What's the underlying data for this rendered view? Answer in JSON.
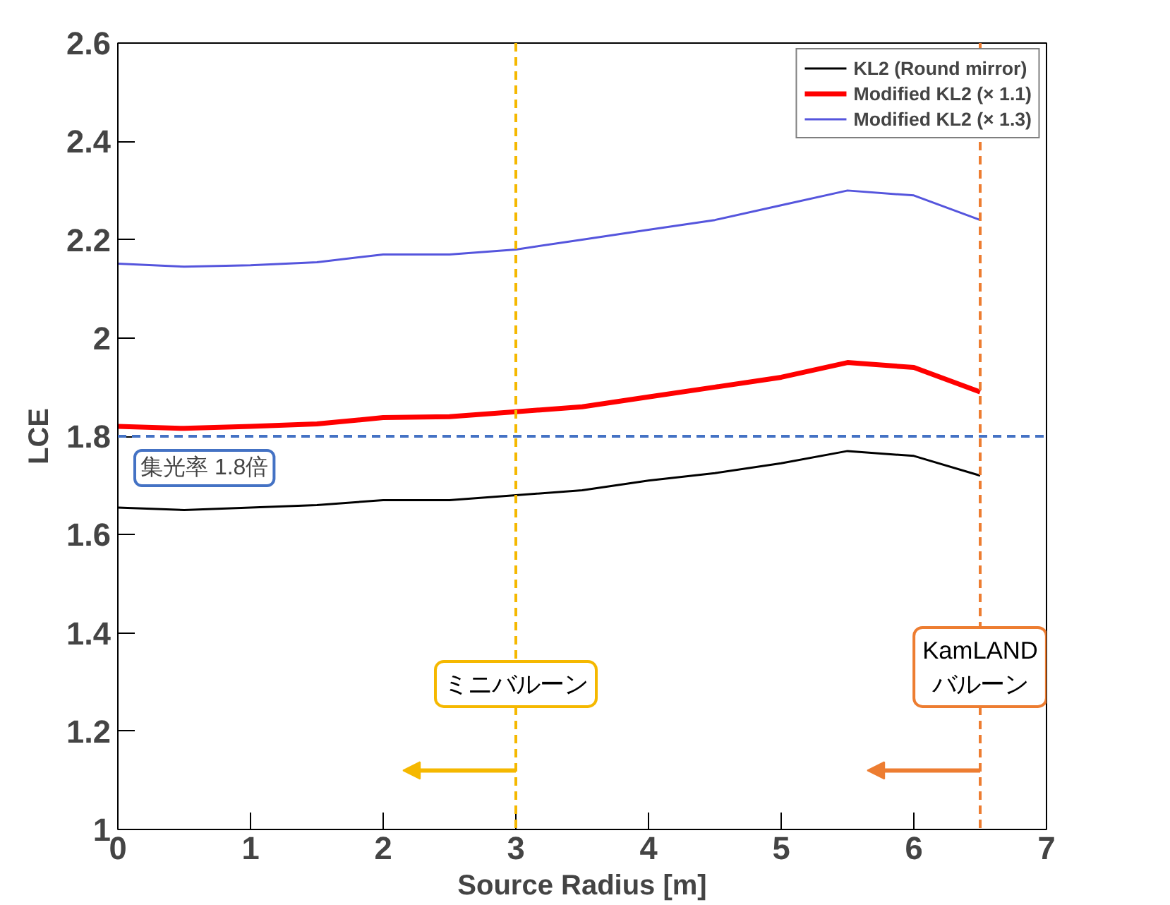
{
  "chart_data": {
    "type": "line",
    "xlabel": "Source Radius [m]",
    "ylabel": "LCE",
    "x": [
      0,
      0.5,
      1,
      1.5,
      2,
      2.5,
      3,
      3.5,
      4,
      4.5,
      5,
      5.5,
      6,
      6.5
    ],
    "series": [
      {
        "name": "KL2 (Round mirror)",
        "color": "#000000",
        "values": [
          1.655,
          1.65,
          1.655,
          1.66,
          1.67,
          1.67,
          1.68,
          1.69,
          1.71,
          1.725,
          1.745,
          1.77,
          1.76,
          1.72
        ]
      },
      {
        "name": "Modified KL2 (× 1.1)",
        "color": "#ff0000",
        "values": [
          1.82,
          1.816,
          1.82,
          1.825,
          1.838,
          1.84,
          1.85,
          1.86,
          1.88,
          1.9,
          1.92,
          1.95,
          1.94,
          1.89
        ]
      },
      {
        "name": "Modified KL2 (× 1.3)",
        "color": "#5555dd",
        "values": [
          2.151,
          2.145,
          2.148,
          2.154,
          2.17,
          2.17,
          2.18,
          2.2,
          2.22,
          2.24,
          2.27,
          2.3,
          2.29,
          2.24
        ]
      }
    ],
    "xlim": [
      0,
      7
    ],
    "ylim": [
      1,
      2.6
    ],
    "xticks": [
      0,
      1,
      2,
      3,
      4,
      5,
      6,
      7
    ],
    "yticks": [
      1,
      1.2,
      1.4,
      1.6,
      1.8,
      2,
      2.2,
      2.4,
      2.6
    ],
    "ref_lines": [
      {
        "axis": "x",
        "value": 3,
        "label": "ミニバルーン",
        "color": "#f5b800",
        "line_style": "dashed"
      },
      {
        "axis": "x",
        "value": 6.5,
        "label": "KamLAND\nバルーン",
        "color": "#ed7d31",
        "line_style": "dashed"
      },
      {
        "axis": "y",
        "value": 1.8,
        "label": "集光率 1.8倍",
        "color": "#4472c4",
        "line_style": "dashed"
      }
    ],
    "grid": false,
    "legend": "top right",
    "marker": "none",
    "line_style": "solid"
  }
}
